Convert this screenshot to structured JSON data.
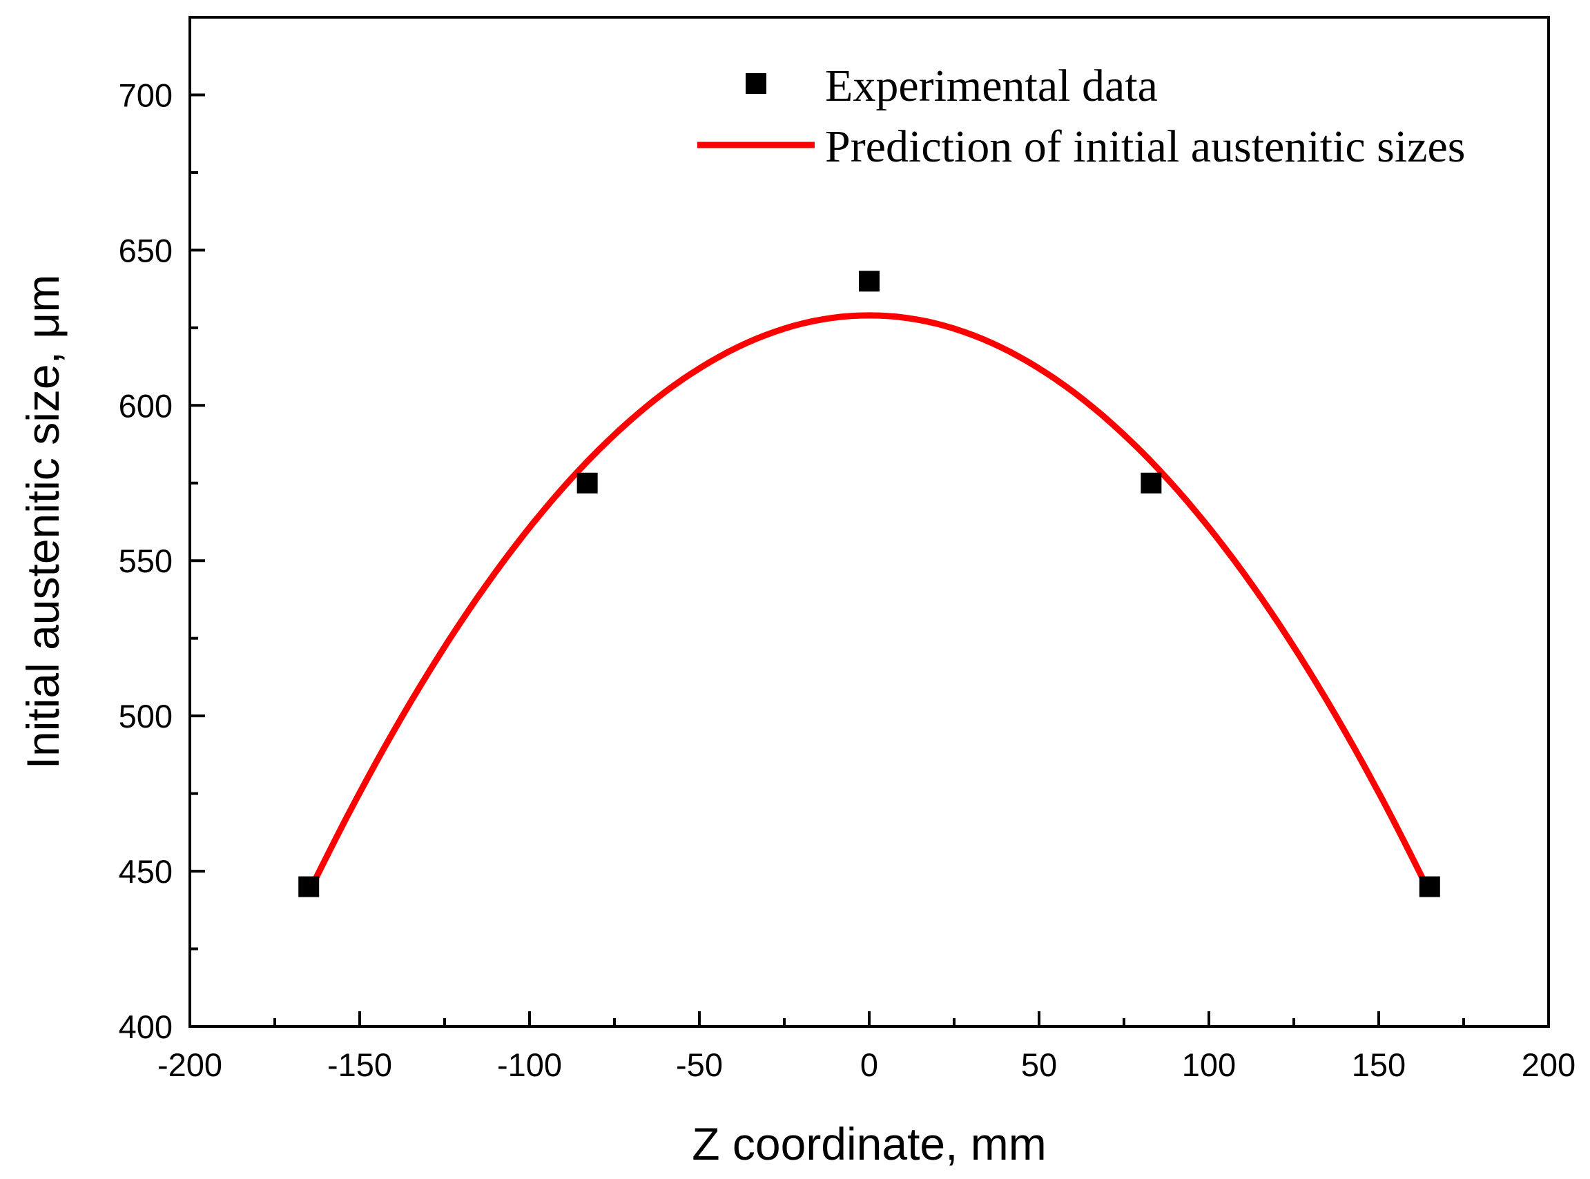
{
  "chart_data": {
    "type": "scatter+line",
    "xlabel": "Z coordinate, mm",
    "ylabel": "Initial austenitic size, μm",
    "xlim": [
      -200,
      200
    ],
    "ylim": [
      400,
      725
    ],
    "xticks": [
      -200,
      -150,
      -100,
      -50,
      0,
      50,
      100,
      150,
      200
    ],
    "xtick_labels": [
      "-200",
      "-150",
      "-100",
      "-50",
      "0",
      "50",
      "100",
      "150",
      "200"
    ],
    "yticks": [
      400,
      450,
      500,
      550,
      600,
      650,
      700
    ],
    "ytick_labels": [
      "400",
      "450",
      "500",
      "550",
      "600",
      "650",
      "700"
    ],
    "grid": false,
    "legend_position": "top-right",
    "series": [
      {
        "name": "Experimental data",
        "kind": "scatter",
        "marker": "square",
        "color": "#000000",
        "x": [
          -165,
          -83,
          0,
          83,
          165
        ],
        "y": [
          445,
          575,
          640,
          575,
          445
        ]
      },
      {
        "name": "Prediction of initial austenitic sizes",
        "kind": "line",
        "color": "#ff0000",
        "model": "quadratic",
        "x_range": [
          -165,
          165
        ],
        "vertex_x": 0,
        "vertex_y": 629,
        "end_y": 443
      }
    ]
  }
}
